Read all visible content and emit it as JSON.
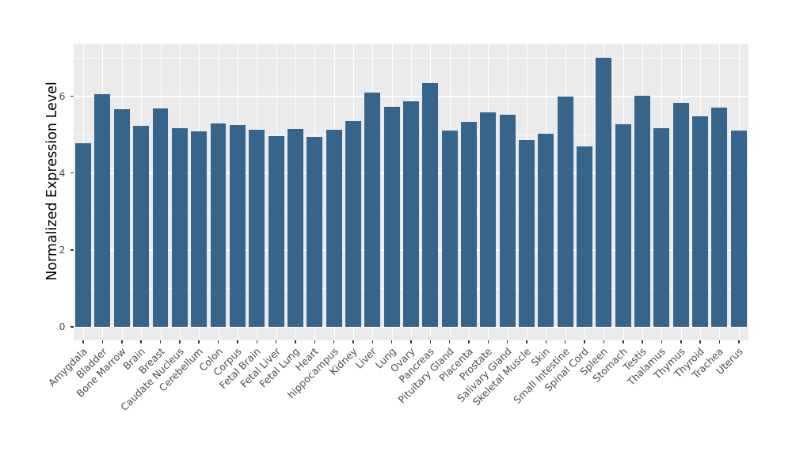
{
  "chart_data": {
    "type": "bar",
    "title": "",
    "xlabel": "",
    "ylabel": "Normalized Expression Level",
    "legend": "none",
    "grid": "on",
    "categories": [
      "Amygdala",
      "Bladder",
      "Bone Marrow",
      "Brain",
      "Breast",
      "Caudate Nucleus",
      "Cerebellum",
      "Colon",
      "Corpus",
      "Fetal Brain",
      "Fetal Liver",
      "Fetal Lung",
      "Heart",
      "hippocampus",
      "Kidney",
      "Liver",
      "Lung",
      "Ovary",
      "Pancreas",
      "Pituitary Gland",
      "Placenta",
      "Prostate",
      "Salivary Gland",
      "Skeletal Muscle",
      "Skin",
      "Small Intestine",
      "Spinal Cord",
      "Spleen",
      "Stomach",
      "Testis",
      "Thalamus",
      "Thymus",
      "Thyroid",
      "Trachea",
      "Uterus"
    ],
    "values": [
      4.78,
      6.06,
      5.66,
      5.22,
      5.69,
      5.17,
      5.08,
      5.29,
      5.25,
      5.13,
      4.97,
      5.14,
      4.95,
      5.13,
      5.35,
      6.1,
      5.73,
      5.86,
      6.35,
      5.11,
      5.33,
      5.58,
      5.52,
      4.85,
      5.03,
      5.99,
      4.7,
      7.0,
      5.28,
      6.02,
      5.16,
      5.82,
      5.48,
      5.7,
      5.1
    ],
    "yticks_major": [
      0,
      2,
      4,
      6
    ],
    "yticks_minor": [
      1,
      3,
      5,
      7
    ],
    "ylim": [
      -0.35,
      7.35
    ],
    "colors": {
      "bar_fill": "#36648B",
      "panel_background": "#EBEBEB",
      "gridline": "#FFFFFF",
      "axis_text": "#4d4d4d",
      "axis_title": "#000000",
      "tick_mark": "#333333",
      "figure_background": "#FFFFFF"
    }
  }
}
